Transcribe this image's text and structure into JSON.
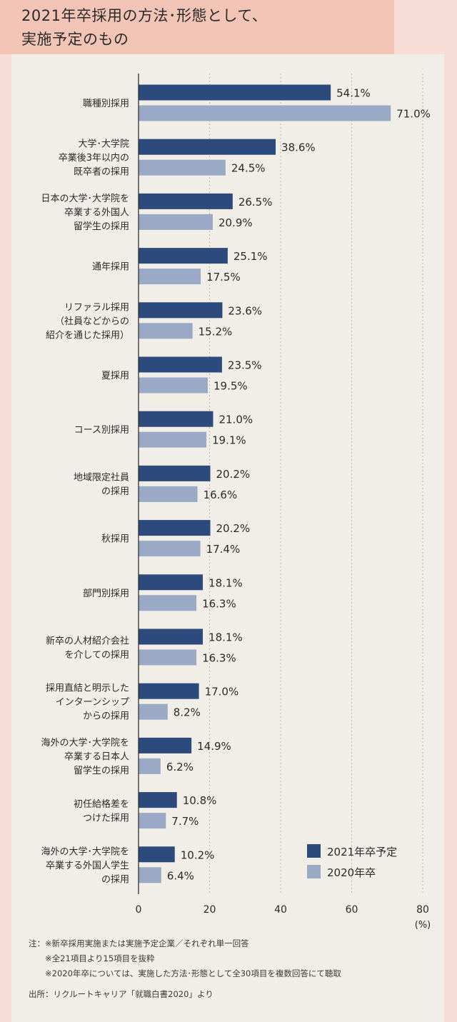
{
  "title": {
    "line1": "2021年卒採用の方法･形態として、",
    "line2": "実施予定のもの"
  },
  "colors": {
    "series_2021": "#2c4a7c",
    "series_2020": "#9aa9c6"
  },
  "chart_data": {
    "type": "bar",
    "orientation": "horizontal",
    "categories": [
      [
        "職種別採用"
      ],
      [
        "大学･大学院",
        "卒業後3年以内の",
        "既卒者の採用"
      ],
      [
        "日本の大学･大学院を",
        "卒業する外国人",
        "留学生の採用"
      ],
      [
        "通年採用"
      ],
      [
        "リファラル採用",
        "（社員などからの",
        "紹介を通じた採用）"
      ],
      [
        "夏採用"
      ],
      [
        "コース別採用"
      ],
      [
        "地域限定社員",
        "の採用"
      ],
      [
        "秋採用"
      ],
      [
        "部門別採用"
      ],
      [
        "新卒の人材紹介会社",
        "を介しての採用"
      ],
      [
        "採用直結と明示した",
        "インターンシップ",
        "からの採用"
      ],
      [
        "海外の大学･大学院を",
        "卒業する日本人",
        "留学生の採用"
      ],
      [
        "初任給格差を",
        "つけた採用"
      ],
      [
        "海外の大学･大学院を",
        "卒業する外国人学生",
        "の採用"
      ]
    ],
    "series": [
      {
        "name": "2021年卒予定",
        "values": [
          54.1,
          38.6,
          26.5,
          25.1,
          23.6,
          23.5,
          21.0,
          20.2,
          20.2,
          18.1,
          18.1,
          17.0,
          14.9,
          10.8,
          10.2
        ],
        "labels": [
          "54.1%",
          "38.6%",
          "26.5%",
          "25.1%",
          "23.6%",
          "23.5%",
          "21.0%",
          "20.2%",
          "20.2%",
          "18.1%",
          "18.1%",
          "17.0%",
          "14.9%",
          "10.8%",
          "10.2%"
        ]
      },
      {
        "name": "2020年卒",
        "values": [
          71.0,
          24.5,
          20.9,
          17.5,
          15.2,
          19.5,
          19.1,
          16.6,
          17.4,
          16.3,
          16.3,
          8.2,
          6.2,
          7.7,
          6.4
        ],
        "labels": [
          "71.0%",
          "24.5%",
          "20.9%",
          "17.5%",
          "15.2%",
          "19.5%",
          "19.1%",
          "16.6%",
          "17.4%",
          "16.3%",
          "16.3%",
          "8.2%",
          "6.2%",
          "7.7%",
          "6.4%"
        ]
      }
    ],
    "xlim": [
      0,
      80
    ],
    "xticks": [
      "0",
      "20",
      "40",
      "60",
      "80"
    ],
    "unit": "(%)",
    "grid": "dotted vertical",
    "legend": "bottom-right"
  },
  "notes": {
    "line1": "注：※新卒採用実施または実施予定企業／それぞれ単一回答",
    "line2": "　　※全21項目より15項目を抜粋",
    "line3": "　　※2020年卒については、実施した方法･形態として全30項目を複数回答にて聴取",
    "source": "出所：リクルートキャリア「就職白書2020」より"
  }
}
